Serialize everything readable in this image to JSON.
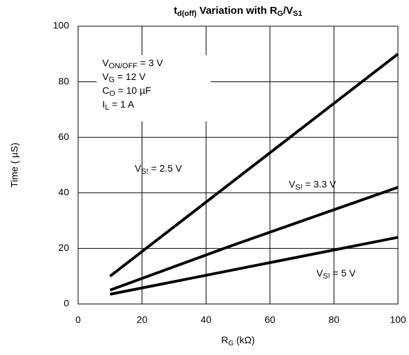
{
  "chart_data": {
    "type": "line",
    "title": [
      "t",
      "d(off)",
      " Variation with R",
      "G",
      "/V",
      "S1"
    ],
    "x_label": [
      "R",
      "G",
      " (kΩ)"
    ],
    "y_label": "Time ( µS)",
    "xlim": [
      0,
      100
    ],
    "xticks": [
      0,
      20,
      40,
      60,
      80,
      100
    ],
    "ylim": [
      0,
      100
    ],
    "yticks": [
      0,
      20,
      40,
      60,
      80,
      100
    ],
    "grid": true,
    "annotations": [
      [
        "V",
        "ON/OFF",
        " = 3 V"
      ],
      [
        "V",
        "G",
        " = 12 V"
      ],
      [
        "C",
        "O",
        " = 10 µF"
      ],
      [
        "I",
        "L",
        " = 1 A"
      ]
    ],
    "series": [
      {
        "name": [
          "V",
          "S!",
          " = 2.5 V"
        ],
        "color": "#000000",
        "x": [
          10,
          100
        ],
        "values": [
          10,
          90
        ]
      },
      {
        "name": [
          "V",
          "S!",
          " = 3.3 V"
        ],
        "color": "#000000",
        "x": [
          10,
          48,
          100
        ],
        "values": [
          5,
          21,
          42
        ]
      },
      {
        "name": [
          "V",
          "S!",
          " = 5 V"
        ],
        "color": "#000000",
        "x": [
          10,
          100
        ],
        "values": [
          3.5,
          24
        ]
      }
    ]
  }
}
